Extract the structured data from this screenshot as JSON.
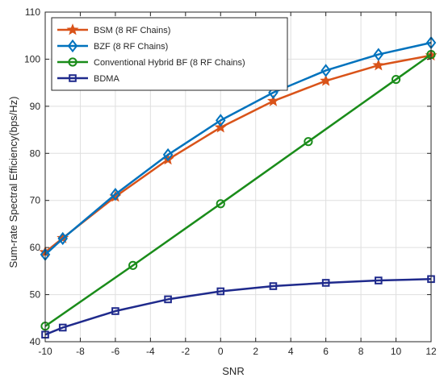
{
  "chart_data": {
    "type": "line",
    "title": "",
    "xlabel": "SNR",
    "ylabel": "Sum-rate Spectral Efficiency(bps/Hz)",
    "xlim": [
      -10,
      12
    ],
    "ylim": [
      40,
      110
    ],
    "xticks": [
      -10,
      -8,
      -6,
      -4,
      -2,
      0,
      2,
      4,
      6,
      8,
      10,
      12
    ],
    "yticks": [
      40,
      50,
      60,
      70,
      80,
      90,
      100,
      110
    ],
    "grid": true,
    "legend_position": "top-left",
    "series": [
      {
        "name": "BSM (8 RF Chains)",
        "color": "#D95319",
        "marker": "star",
        "x": [
          -10,
          -9,
          -6,
          -3,
          0,
          3,
          6,
          9,
          12
        ],
        "y": [
          59.0,
          62.0,
          70.8,
          78.7,
          85.5,
          91.1,
          95.4,
          98.7,
          100.8
        ]
      },
      {
        "name": "BZF (8 RF Chains)",
        "color": "#0072BD",
        "marker": "diamond",
        "x": [
          -10,
          -9,
          -6,
          -3,
          0,
          3,
          6,
          9,
          12
        ],
        "y": [
          58.5,
          61.9,
          71.3,
          79.7,
          87.0,
          92.9,
          97.6,
          101.0,
          103.5
        ]
      },
      {
        "name": "Conventional Hybrid BF (8 RF Chains)",
        "color": "#1A8C1A",
        "marker": "circle",
        "x": [
          -10,
          -5,
          0,
          5,
          10,
          12
        ],
        "y": [
          43.3,
          56.2,
          69.3,
          82.5,
          95.7,
          101.0
        ]
      },
      {
        "name": "BDMA",
        "color": "#1F2A8C",
        "marker": "square",
        "x": [
          -10,
          -9,
          -6,
          -3,
          0,
          3,
          6,
          9,
          12
        ],
        "y": [
          41.5,
          43.0,
          46.5,
          49.0,
          50.7,
          51.8,
          52.5,
          53.0,
          53.3
        ]
      }
    ]
  }
}
